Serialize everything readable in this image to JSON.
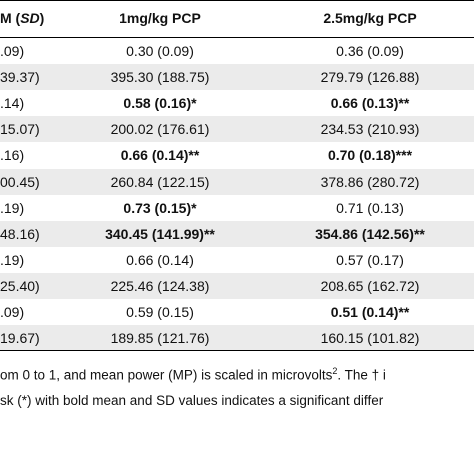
{
  "table": {
    "header": {
      "first": {
        "pre": "M (",
        "italic": "SD",
        "post": ")"
      },
      "columns": [
        "1mg/kg PCP",
        "2.5mg/kg PCP"
      ]
    },
    "rows": [
      {
        "cells": [
          ".09)",
          "0.30 (0.09)",
          "0.36 (0.09)"
        ],
        "bold": [
          false,
          false,
          false
        ]
      },
      {
        "cells": [
          "39.37)",
          "395.30 (188.75)",
          "279.79 (126.88)"
        ],
        "bold": [
          false,
          false,
          false
        ]
      },
      {
        "cells": [
          ".14)",
          "0.58 (0.16)*",
          "0.66 (0.13)**"
        ],
        "bold": [
          false,
          true,
          true
        ]
      },
      {
        "cells": [
          "15.07)",
          "200.02 (176.61)",
          "234.53 (210.93)"
        ],
        "bold": [
          false,
          false,
          false
        ]
      },
      {
        "cells": [
          ".16)",
          "0.66 (0.14)**",
          "0.70 (0.18)***"
        ],
        "bold": [
          false,
          true,
          true
        ]
      },
      {
        "cells": [
          "00.45)",
          "260.84 (122.15)",
          "378.86 (280.72)"
        ],
        "bold": [
          false,
          false,
          false
        ]
      },
      {
        "cells": [
          ".19)",
          "0.73 (0.15)*",
          "0.71 (0.13)"
        ],
        "bold": [
          false,
          true,
          false
        ]
      },
      {
        "cells": [
          "48.16)",
          "340.45 (141.99)**",
          "354.86 (142.56)**"
        ],
        "bold": [
          false,
          true,
          true
        ]
      },
      {
        "cells": [
          ".19)",
          "0.66 (0.14)",
          "0.57 (0.17)"
        ],
        "bold": [
          false,
          false,
          false
        ]
      },
      {
        "cells": [
          "25.40)",
          "225.46 (124.38)",
          "208.65 (162.72)"
        ],
        "bold": [
          false,
          false,
          false
        ]
      },
      {
        "cells": [
          ".09)",
          "0.59 (0.15)",
          "0.51 (0.14)**"
        ],
        "bold": [
          false,
          false,
          true
        ]
      },
      {
        "cells": [
          "19.67)",
          "189.85 (121.76)",
          "160.15 (101.82)"
        ],
        "bold": [
          false,
          false,
          false
        ]
      }
    ]
  },
  "footnote": {
    "line1": {
      "pre": "om 0 to 1, and mean power (MP) is scaled in microvolts",
      "sup": "2",
      "post": ". The † i"
    },
    "line2": "sk (*) with bold mean and SD values indicates a significant differ"
  }
}
